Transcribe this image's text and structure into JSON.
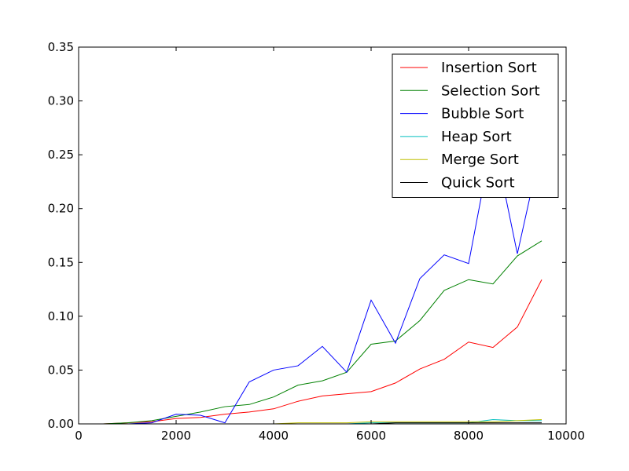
{
  "chart_data": {
    "type": "line",
    "title": "",
    "xlabel": "",
    "ylabel": "",
    "xlim": [
      0,
      10000
    ],
    "ylim": [
      0,
      0.35
    ],
    "xticks": [
      0,
      2000,
      4000,
      6000,
      8000,
      10000
    ],
    "xtick_labels": [
      "0",
      "2000",
      "4000",
      "6000",
      "8000",
      "10000"
    ],
    "yticks": [
      0.0,
      0.05,
      0.1,
      0.15,
      0.2,
      0.25,
      0.3,
      0.35
    ],
    "ytick_labels": [
      "0.00",
      "0.05",
      "0.10",
      "0.15",
      "0.20",
      "0.25",
      "0.30",
      "0.35"
    ],
    "grid": false,
    "legend_position": "top-right",
    "x": [
      500,
      1000,
      1500,
      2000,
      2500,
      3000,
      3500,
      4000,
      4500,
      5000,
      5500,
      6000,
      6500,
      7000,
      7500,
      8000,
      8500,
      9000,
      9500
    ],
    "series": [
      {
        "name": "Insertion Sort",
        "color": "#ff0000",
        "values": [
          0.0,
          0.001,
          0.002,
          0.005,
          0.006,
          0.009,
          0.011,
          0.014,
          0.021,
          0.026,
          0.028,
          0.03,
          0.038,
          0.051,
          0.06,
          0.076,
          0.071,
          0.09,
          0.134
        ]
      },
      {
        "name": "Selection Sort",
        "color": "#008000",
        "values": [
          0.0,
          0.001,
          0.003,
          0.007,
          0.011,
          0.016,
          0.018,
          0.025,
          0.036,
          0.04,
          0.048,
          0.074,
          0.077,
          0.096,
          0.124,
          0.134,
          0.13,
          0.156,
          0.17
        ]
      },
      {
        "name": "Bubble Sort",
        "color": "#0000ff",
        "values": [
          0.0,
          0.0,
          0.001,
          0.009,
          0.008,
          0.001,
          0.039,
          0.05,
          0.054,
          0.072,
          0.048,
          0.115,
          0.075,
          0.135,
          0.157,
          0.149,
          0.268,
          0.158,
          0.26
        ]
      },
      {
        "name": "Heap Sort",
        "color": "#00bfbf",
        "values": [
          0.0,
          0.0,
          0.0,
          0.0,
          0.0,
          0.0,
          0.0,
          0.0,
          0.0,
          0.0,
          0.0,
          0.001,
          0.001,
          0.001,
          0.001,
          0.001,
          0.004,
          0.003,
          0.003
        ]
      },
      {
        "name": "Merge Sort",
        "color": "#bfbf00",
        "values": [
          0.0,
          0.0,
          0.0,
          0.0,
          0.0,
          0.0,
          0.0,
          0.0,
          0.001,
          0.001,
          0.001,
          0.002,
          0.002,
          0.002,
          0.002,
          0.002,
          0.002,
          0.003,
          0.004
        ]
      },
      {
        "name": "Quick Sort",
        "color": "#000000",
        "values": [
          0.0,
          0.0,
          0.0,
          0.0,
          0.0,
          0.0,
          0.0,
          0.0,
          0.0,
          0.0,
          0.0,
          0.0,
          0.001,
          0.001,
          0.001,
          0.001,
          0.001,
          0.001,
          0.001
        ]
      }
    ]
  }
}
